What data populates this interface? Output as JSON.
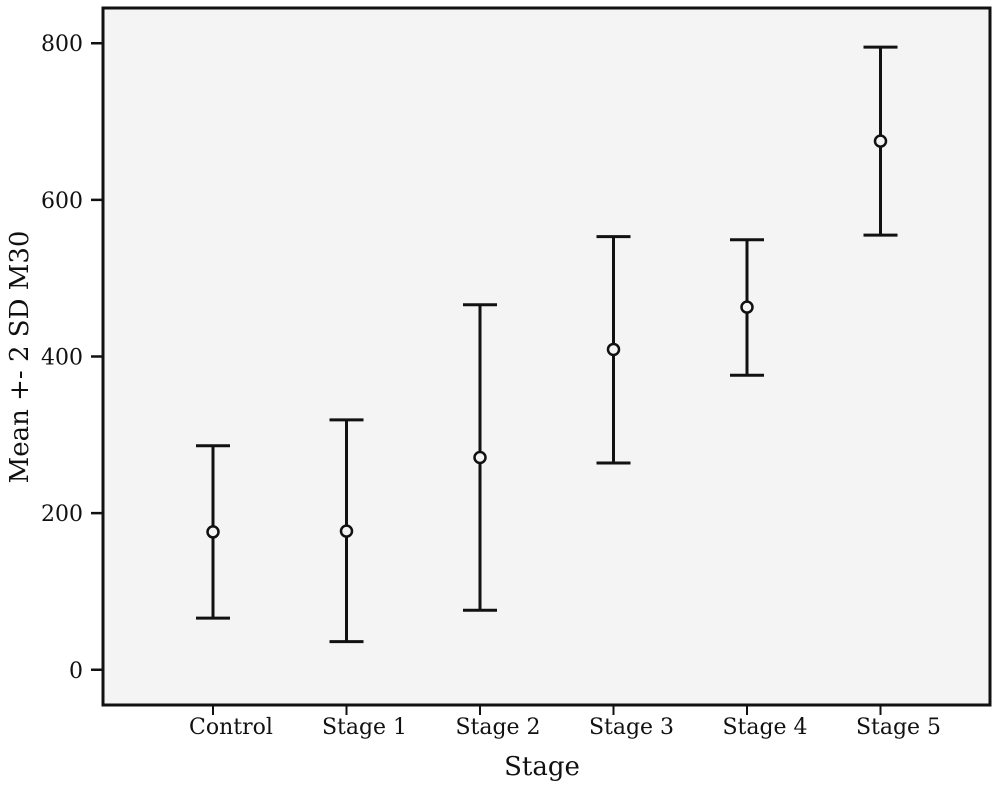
{
  "chart_data": {
    "type": "errorbar",
    "title": "",
    "xlabel": "Stage",
    "ylabel": "Mean +- 2 SD M30",
    "categories": [
      "Control",
      "Stage 1",
      "Stage 2",
      "Stage 3",
      "Stage 4",
      "Stage 5"
    ],
    "means": [
      176,
      177,
      271,
      409,
      463,
      675
    ],
    "lower": [
      66,
      36,
      76,
      264,
      376,
      555
    ],
    "upper": [
      286,
      319,
      466,
      553,
      549,
      795
    ],
    "ylim": [
      -45,
      845
    ],
    "yticks": [
      0,
      200,
      400,
      600,
      800
    ],
    "grid": false,
    "legend": "none",
    "colors": {
      "plot_background": "#f4f4f4",
      "ink": "#111111"
    }
  }
}
